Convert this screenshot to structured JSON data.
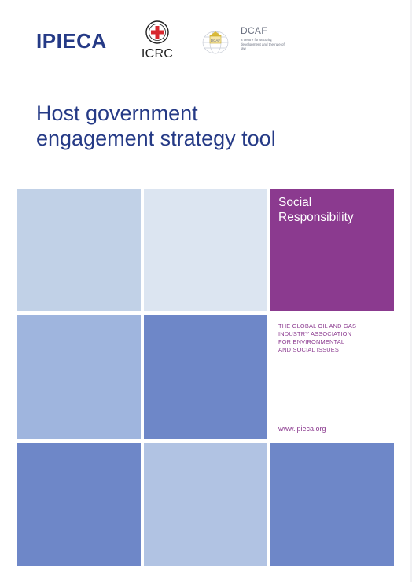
{
  "logos": {
    "ipieca": "IPIECA",
    "icrc": "ICRC",
    "dcaf_name": "DCAF",
    "dcaf_tagline": "a centre for security, development and the rule of law"
  },
  "title": {
    "line1": "Host government",
    "line2": "engagement strategy tool"
  },
  "series_panel": {
    "label_line1": "Social",
    "label_line2": "Responsibility"
  },
  "association": {
    "line1": "THE GLOBAL OIL AND GAS",
    "line2": "INDUSTRY ASSOCIATION",
    "line3": "FOR ENVIRONMENTAL",
    "line4": "AND SOCIAL ISSUES"
  },
  "website": "www.ipieca.org",
  "colors": {
    "brand_blue": "#253a86",
    "purple": "#8b3a8f",
    "tiles": [
      "#c1d1e7",
      "#dce5f1",
      "#9fb5de",
      "#6e87c8",
      "#6e87c8",
      "#b1c3e3",
      "#6e87c8"
    ]
  }
}
